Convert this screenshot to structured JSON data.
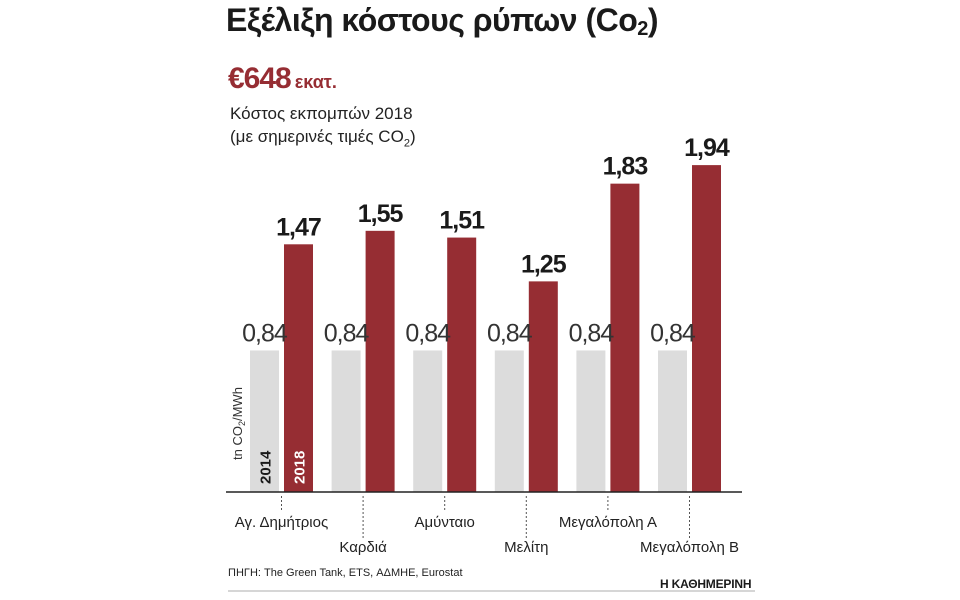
{
  "header": {
    "title_main": "Εξέλιξη κόστους ρύπων (Co",
    "title_sub": "2",
    "title_end": ")",
    "headline_value": "€648",
    "headline_unit": "εκατ.",
    "subtitle_line1": "Κόστος εκπομπών 2018",
    "subtitle_line2_main": "(με σημερινές τιμές CO",
    "subtitle_line2_sub": "2",
    "subtitle_line2_end": ")"
  },
  "chart_data": {
    "type": "bar",
    "ylabel_main": "tn CO",
    "ylabel_sub": "2",
    "ylabel_end": "/MWh",
    "ylim": [
      0,
      2.2
    ],
    "grid": false,
    "categories": [
      "Αγ. Δημήτριος",
      "Καρδιά",
      "Αμύνταιο",
      "Μελίτη",
      "Μεγαλόπολη Α",
      "Μεγαλόπολη Β"
    ],
    "category_label_row": [
      "upper",
      "lower",
      "upper",
      "lower",
      "upper",
      "lower"
    ],
    "series": [
      {
        "name": "2014",
        "color": "#dcdcdc",
        "values": [
          0.84,
          0.84,
          0.84,
          0.84,
          0.84,
          0.84
        ],
        "labels": [
          "0,84",
          "0,84",
          "0,84",
          "0,84",
          "0,84",
          "0,84"
        ]
      },
      {
        "name": "2018",
        "color": "#962d33",
        "values": [
          1.47,
          1.55,
          1.51,
          1.25,
          1.83,
          1.94
        ],
        "labels": [
          "1,47",
          "1,55",
          "1,51",
          "1,25",
          "1,83",
          "1,94"
        ]
      }
    ]
  },
  "footer": {
    "source": "ΠΗΓΗ: The Green Tank, ETS, ΑΔΜΗΕ, Eurostat",
    "brand": "Η ΚΑΘΗΜΕΡΙΝΗ"
  }
}
